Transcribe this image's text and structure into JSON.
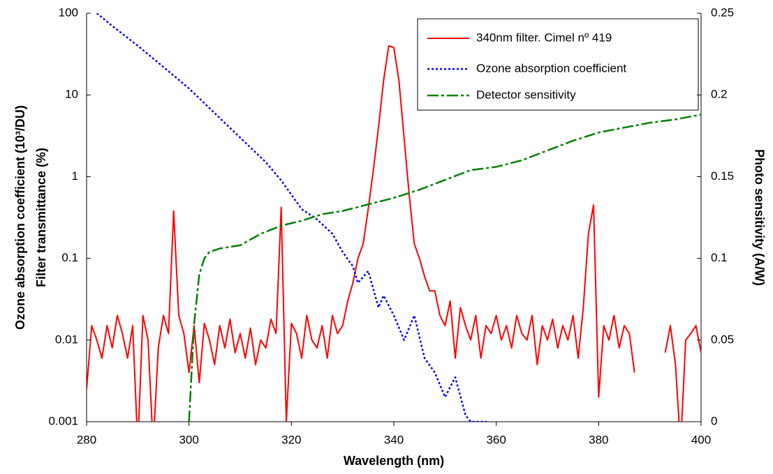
{
  "chart_data": {
    "type": "line",
    "xlabel": "Wavelength (nm)",
    "ylabel": [
      "Ozone absorption coefficient (10³/DU)",
      "Filter transmittance (%)"
    ],
    "y2label": "Photo sensitivity (A/W)",
    "xlim": [
      280,
      400
    ],
    "xticks": [
      280,
      300,
      320,
      340,
      360,
      380,
      400
    ],
    "ylim": [
      0.001,
      100
    ],
    "yticks": [
      0.001,
      0.01,
      0.1,
      1,
      10,
      100
    ],
    "yscale": "log",
    "y2lim": [
      0,
      0.25
    ],
    "y2ticks": [
      0,
      0.05,
      0.1,
      0.15,
      0.2,
      0.25
    ],
    "legend": "top-right",
    "series": [
      {
        "name": "340nm filter. Cimel nº 419",
        "color": "#ff0000",
        "style": "solid",
        "x": [
          280,
          281,
          282,
          283,
          284,
          285,
          286,
          287,
          288,
          289,
          290,
          291,
          292,
          293,
          294,
          295,
          296,
          297,
          298,
          299,
          300,
          301,
          302,
          303,
          304,
          305,
          306,
          307,
          308,
          309,
          310,
          311,
          312,
          313,
          314,
          315,
          316,
          317,
          318,
          319,
          320,
          321,
          322,
          323,
          324,
          325,
          326,
          327,
          328,
          329,
          330,
          331,
          332,
          333,
          334,
          335,
          336,
          337,
          338,
          339,
          340,
          341,
          342,
          343,
          344,
          345,
          346,
          347,
          348,
          349,
          350,
          351,
          352,
          353,
          354,
          355,
          356,
          357,
          358,
          359,
          360,
          361,
          362,
          363,
          364,
          365,
          366,
          367,
          368,
          369,
          370,
          371,
          372,
          373,
          374,
          375,
          376,
          377,
          378,
          379,
          380,
          381,
          382,
          383,
          384,
          385,
          386,
          387,
          388,
          389,
          390,
          391,
          392,
          393,
          394,
          395,
          396,
          397,
          398,
          399,
          400
        ],
        "values": [
          0.0025,
          0.015,
          0.01,
          0.006,
          0.015,
          0.008,
          0.02,
          0.012,
          0.006,
          0.015,
          0.0005,
          0.02,
          0.01,
          0.0005,
          0.008,
          0.02,
          0.012,
          0.38,
          0.02,
          0.012,
          0.004,
          0.015,
          0.003,
          0.016,
          0.01,
          0.005,
          0.015,
          0.008,
          0.018,
          0.007,
          0.012,
          0.006,
          0.014,
          0.005,
          0.01,
          0.008,
          0.018,
          0.012,
          0.42,
          0.001,
          0.016,
          0.012,
          0.006,
          0.02,
          0.01,
          0.008,
          0.015,
          0.006,
          0.02,
          0.012,
          0.015,
          0.03,
          0.05,
          0.1,
          0.15,
          0.4,
          1.2,
          4,
          15,
          40,
          38,
          15,
          3,
          0.6,
          0.15,
          0.1,
          0.06,
          0.04,
          0.04,
          0.02,
          0.015,
          0.03,
          0.006,
          0.025,
          0.015,
          0.01,
          0.02,
          0.006,
          0.015,
          0.012,
          0.02,
          0.01,
          0.015,
          0.008,
          0.02,
          0.012,
          0.01,
          0.02,
          0.005,
          0.015,
          0.01,
          0.018,
          0.008,
          0.015,
          0.01,
          0.02,
          0.006,
          0.025,
          0.2,
          0.45,
          0.002,
          0.015,
          0.01,
          0.02,
          0.008,
          0.015,
          0.012,
          0.004,
          null,
          null,
          null,
          null,
          null,
          0.007,
          0.015,
          0.005,
          0.0005,
          0.01,
          0.012,
          0.015,
          0.007
        ]
      },
      {
        "name": "Ozone absorption coefficient",
        "color": "#0000ff",
        "style": "dotted",
        "x": [
          282,
          285,
          290,
          295,
          300,
          305,
          310,
          315,
          318,
          320,
          322,
          325,
          328,
          330,
          332,
          333,
          335,
          337,
          338,
          340,
          342,
          344,
          346,
          348,
          350,
          352,
          354,
          355,
          358,
          360
        ],
        "values": [
          100,
          70,
          40,
          22,
          12,
          6,
          3,
          1.5,
          0.9,
          0.6,
          0.4,
          0.3,
          0.2,
          0.12,
          0.08,
          0.05,
          0.07,
          0.025,
          0.035,
          0.02,
          0.01,
          0.02,
          0.006,
          0.004,
          0.002,
          0.0035,
          0.0012,
          0.001,
          0.001,
          0.0008
        ]
      },
      {
        "name": "Detector sensitivity",
        "color": "#008000",
        "style": "dashdot",
        "axis": "y2",
        "x": [
          300,
          301,
          302,
          303,
          304,
          306,
          310,
          314,
          318,
          322,
          326,
          330,
          335,
          340,
          345,
          350,
          355,
          360,
          365,
          370,
          375,
          380,
          385,
          390,
          395,
          400
        ],
        "values": [
          0,
          0.06,
          0.09,
          0.1,
          0.104,
          0.106,
          0.108,
          0.115,
          0.12,
          0.123,
          0.127,
          0.129,
          0.133,
          0.137,
          0.142,
          0.148,
          0.154,
          0.156,
          0.16,
          0.166,
          0.172,
          0.177,
          0.18,
          0.183,
          0.185,
          0.188
        ]
      }
    ]
  }
}
